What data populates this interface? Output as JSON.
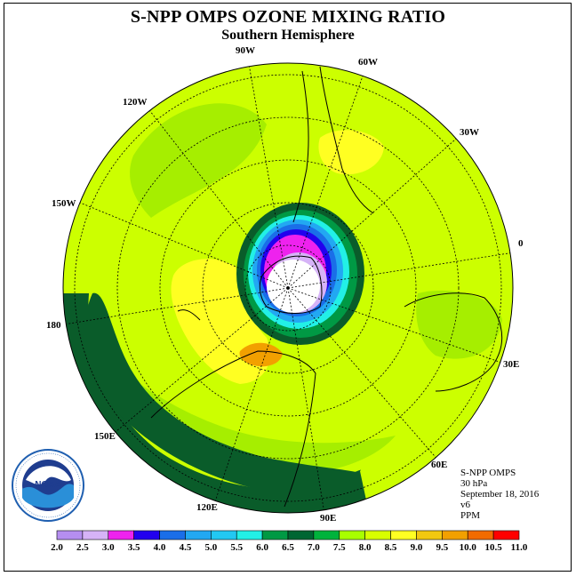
{
  "title": "S-NPP OMPS OZONE MIXING RATIO",
  "subtitle": "Southern Hemisphere",
  "longitude_labels": [
    "90W",
    "60W",
    "30W",
    "0",
    "30E",
    "60E",
    "90E",
    "120E",
    "150E",
    "180",
    "150W",
    "120W"
  ],
  "info": {
    "instrument": "S-NPP OMPS",
    "level": "30 hPa",
    "date": "September 18, 2016",
    "version": "v6",
    "units": "PPM"
  },
  "logo_text": "NOAA",
  "colorbar": {
    "ticks": [
      "2.0",
      "2.5",
      "3.0",
      "3.5",
      "4.0",
      "4.5",
      "5.0",
      "5.5",
      "6.0",
      "6.5",
      "7.0",
      "7.5",
      "8.0",
      "8.5",
      "9.0",
      "9.5",
      "10.0",
      "10.5",
      "11.0"
    ],
    "colors": [
      "#b58ef0",
      "#d6b3f7",
      "#ee22ee",
      "#2200ee",
      "#1a6ee8",
      "#22a8f2",
      "#22c8f2",
      "#22f0e6",
      "#009944",
      "#006633",
      "#00b33c",
      "#a8ff00",
      "#d8ff00",
      "#ffff22",
      "#f2c810",
      "#f2a000",
      "#f26b00",
      "#ff0000",
      "#8b5a3c"
    ]
  },
  "legend_colors": {
    "background_field": "#ccff00",
    "light_green": "#99e600",
    "dark_green": "#0a5c2a",
    "yellow": "#ffff00",
    "orange": "#ffaa00",
    "hole_white": "#ffffff"
  }
}
